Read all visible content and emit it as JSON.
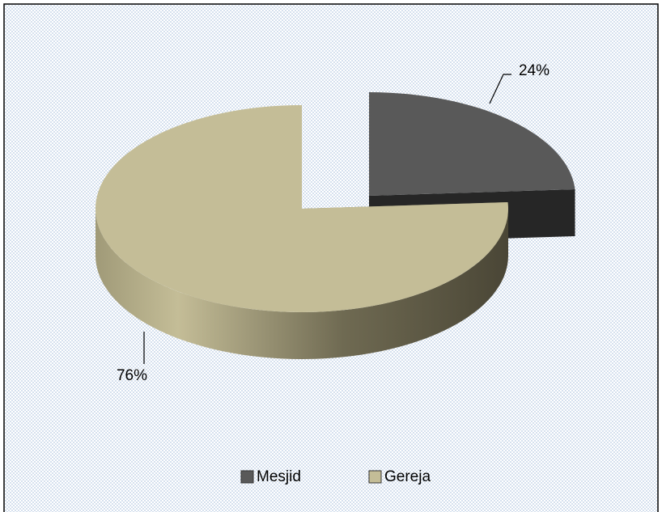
{
  "chart_data": {
    "type": "pie",
    "categories": [
      "Mesjid",
      "Gereja"
    ],
    "values": [
      24,
      76
    ],
    "value_labels": [
      "24%",
      "76%"
    ],
    "colors": [
      "#595959",
      "#c4bd97"
    ],
    "legend": "bottom"
  }
}
